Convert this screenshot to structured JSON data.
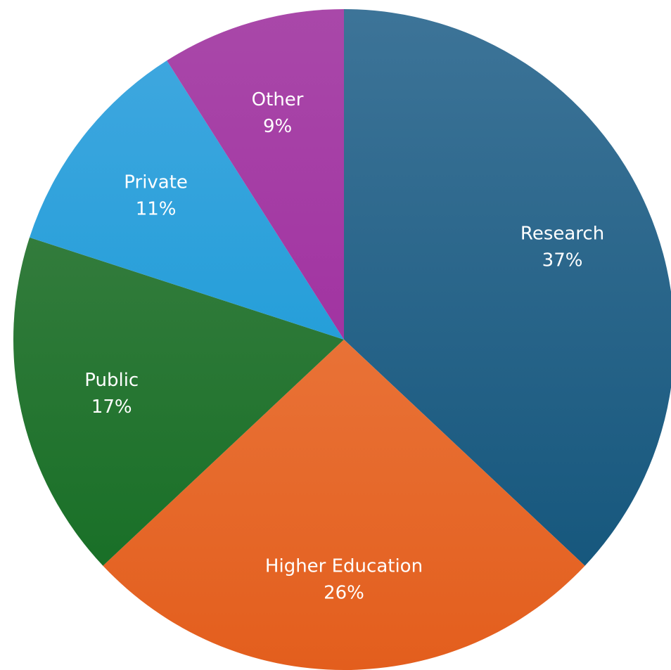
{
  "chart_data": {
    "type": "pie",
    "title": "",
    "start_angle_deg": 0,
    "direction": "clockwise",
    "slices": [
      {
        "label": "Research",
        "value": 37,
        "value_label": "37%",
        "color_top": "#3d7498",
        "color_bottom": "#0f5278"
      },
      {
        "label": "Higher Education",
        "value": 26,
        "value_label": "26%",
        "color_top": "#ee8650",
        "color_bottom": "#e35e1d"
      },
      {
        "label": "Public",
        "value": 17,
        "value_label": "17%",
        "color_top": "#44844a",
        "color_bottom": "#116c21"
      },
      {
        "label": "Private",
        "value": 11,
        "value_label": "11%",
        "color_top": "#42a8e0",
        "color_bottom": "#0995d2"
      },
      {
        "label": "Other",
        "value": 9,
        "value_label": "9%",
        "color_top": "#a948a9",
        "color_bottom": "#9a1f9a"
      }
    ]
  }
}
